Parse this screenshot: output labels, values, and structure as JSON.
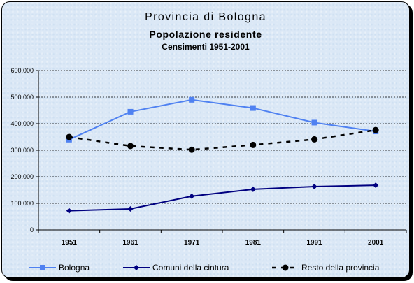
{
  "chart_data": {
    "type": "line",
    "title": "Provincia di Bologna",
    "subtitle": "Popolazione residente",
    "subtitle2": "Censimenti 1951-2001",
    "categories": [
      "1951",
      "1961",
      "1971",
      "1981",
      "1991",
      "2001"
    ],
    "y_ticks": [
      "0",
      "100.000",
      "200.000",
      "300.000",
      "400.000",
      "500.000",
      "600.000"
    ],
    "ylim": [
      0,
      600000
    ],
    "grid": true,
    "legend_position": "bottom",
    "series": [
      {
        "name": "Bologna",
        "values": [
          340000,
          445000,
          490000,
          459000,
          404000,
          371000
        ],
        "color": "#4f81f1",
        "marker": "square",
        "line": "solid"
      },
      {
        "name": "Comuni della cintura",
        "values": [
          72000,
          79000,
          127000,
          153000,
          163000,
          168000
        ],
        "color": "#000080",
        "marker": "diamond",
        "line": "solid"
      },
      {
        "name": "Resto della provincia",
        "values": [
          350000,
          316000,
          302000,
          320000,
          341000,
          376000
        ],
        "color": "#000000",
        "marker": "circle",
        "line": "dashed"
      }
    ]
  }
}
